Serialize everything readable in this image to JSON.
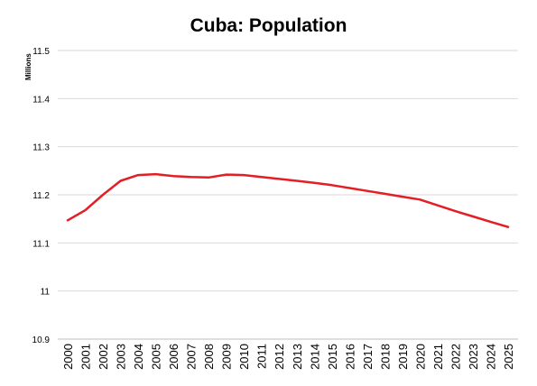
{
  "chart_data": {
    "type": "line",
    "title": "Cuba: Population",
    "ylabel": "Millions",
    "xlabel": "",
    "ylim": [
      10.9,
      11.5
    ],
    "yticks": [
      "10.9",
      "11",
      "11.1",
      "11.2",
      "11.3",
      "11.4",
      "11.5"
    ],
    "ytick_values": [
      10.9,
      11.0,
      11.1,
      11.2,
      11.3,
      11.4,
      11.5
    ],
    "grid": true,
    "x": [
      "2000",
      "2001",
      "2002",
      "2003",
      "2004",
      "2005",
      "2006",
      "2007",
      "2008",
      "2009",
      "2010",
      "2011",
      "2012",
      "2013",
      "2014",
      "2015",
      "2016",
      "2017",
      "2018",
      "2019",
      "2020",
      "2021",
      "2022",
      "2023",
      "2024",
      "2025"
    ],
    "series": [
      {
        "color": "#e31e24",
        "values": [
          11.147,
          11.168,
          11.2,
          11.229,
          11.241,
          11.243,
          11.239,
          11.237,
          11.236,
          11.242,
          11.241,
          11.237,
          11.233,
          11.229,
          11.225,
          11.22,
          11.214,
          11.208,
          11.202,
          11.196,
          11.19,
          11.178,
          11.166,
          11.155,
          11.144,
          11.133
        ]
      }
    ]
  }
}
